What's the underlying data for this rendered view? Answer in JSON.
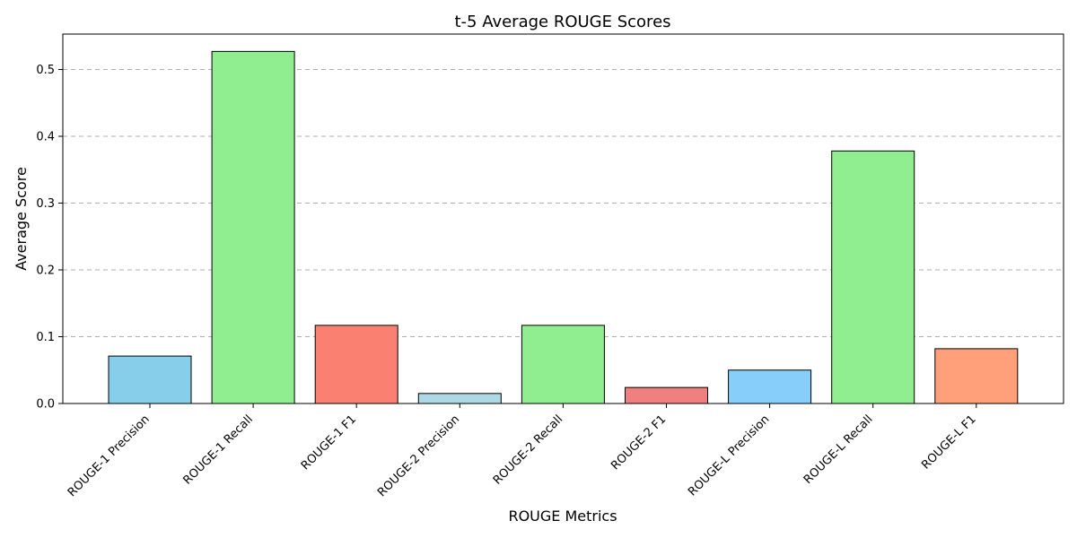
{
  "chart_data": {
    "type": "bar",
    "title": "t-5 Average ROUGE Scores",
    "xlabel": "ROUGE Metrics",
    "ylabel": "Average Score",
    "ylim": [
      0,
      0.553
    ],
    "yticks": [
      "0.0",
      "0.1",
      "0.2",
      "0.3",
      "0.4",
      "0.5"
    ],
    "grid": "y-dashed",
    "categories": [
      "ROUGE-1 Precision",
      "ROUGE-1 Recall",
      "ROUGE-1 F1",
      "ROUGE-2 Precision",
      "ROUGE-2 Recall",
      "ROUGE-2 F1",
      "ROUGE-L Precision",
      "ROUGE-L Recall",
      "ROUGE-L F1"
    ],
    "values": [
      0.071,
      0.527,
      0.117,
      0.015,
      0.117,
      0.024,
      0.05,
      0.378,
      0.082
    ],
    "colors": [
      "#87ceeb",
      "#90ee90",
      "#fa8072",
      "#add8e6",
      "#90ee90",
      "#f08080",
      "#87cefa",
      "#90ee90",
      "#ffa07a"
    ]
  }
}
